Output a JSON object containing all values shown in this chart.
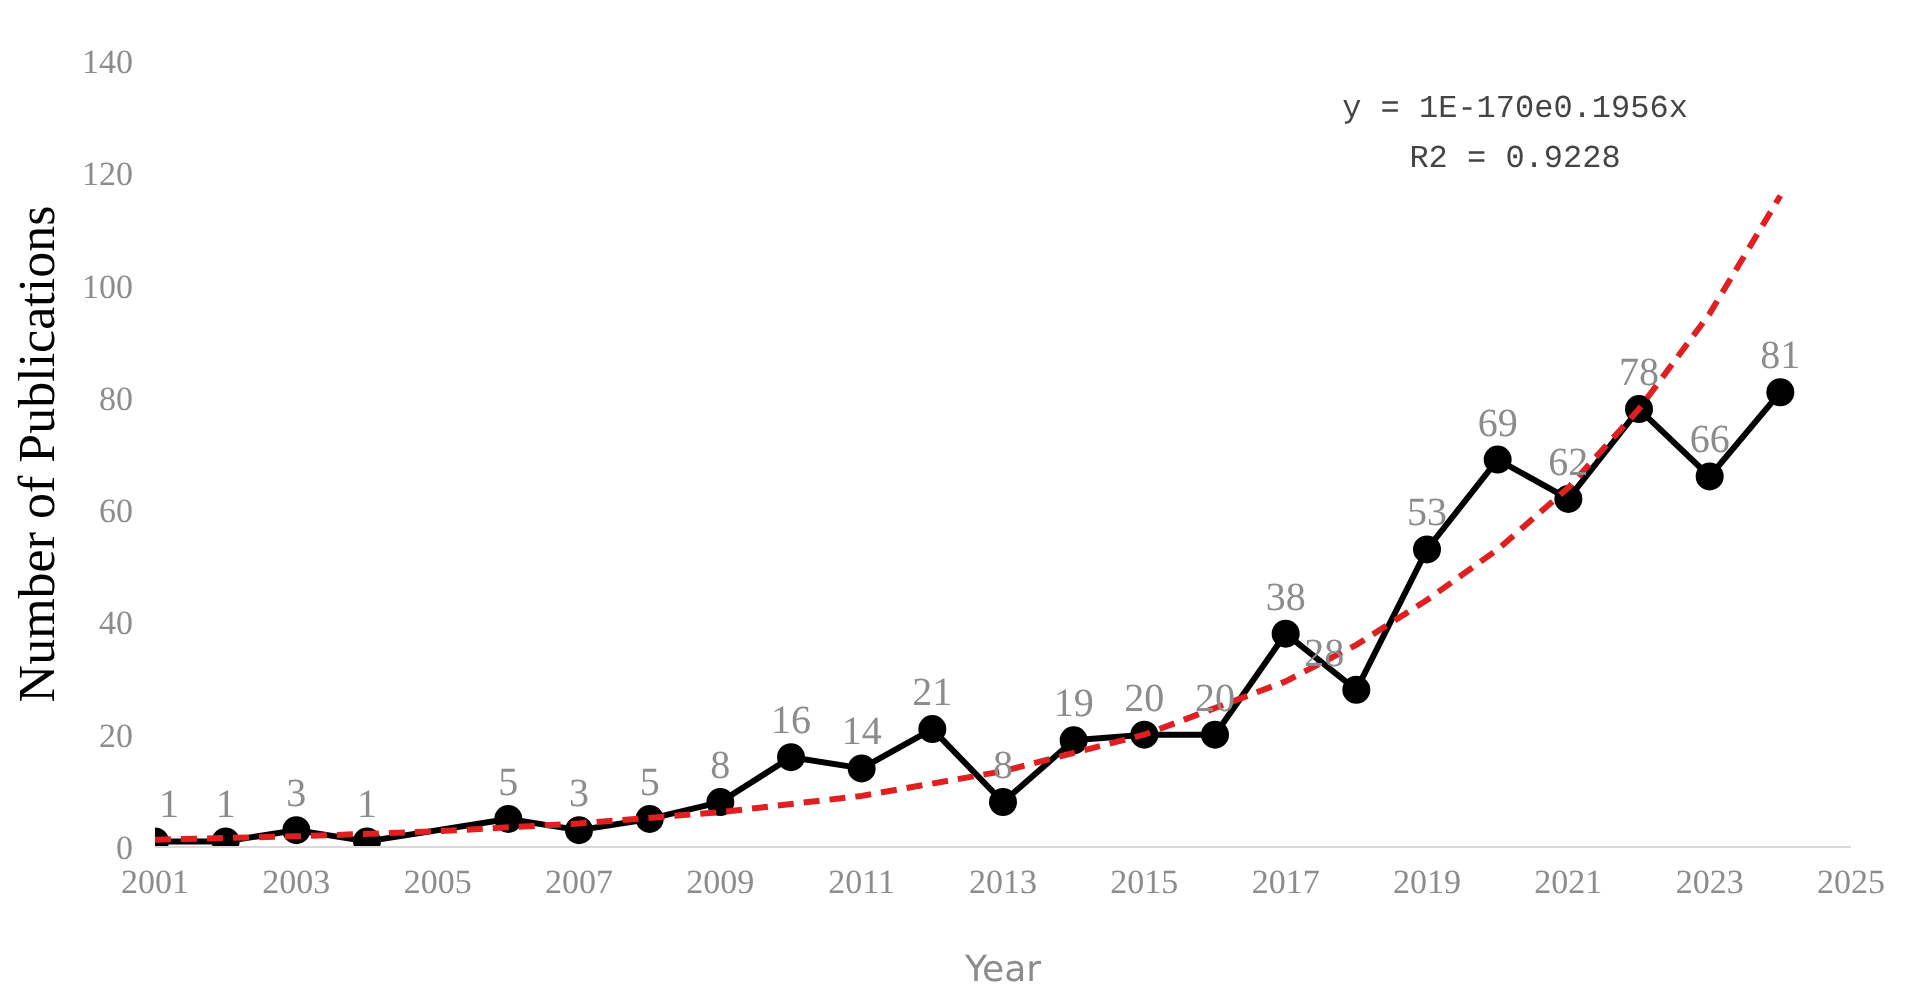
{
  "chart_data": {
    "type": "line",
    "xlabel": "Year",
    "ylabel": "Number of Publications",
    "xlim": [
      2001,
      2025
    ],
    "xticks": [
      2001,
      2003,
      2005,
      2007,
      2009,
      2011,
      2013,
      2015,
      2017,
      2019,
      2021,
      2023,
      2025
    ],
    "ylim": [
      0,
      140
    ],
    "yticks": [
      0,
      20,
      40,
      60,
      80,
      100,
      120,
      140
    ],
    "grid": false,
    "annotations": [
      "y = 1E-170e0.1956x",
      "R2 = 0.9228"
    ],
    "series": [
      {
        "color": "#000000",
        "marker": "circle",
        "line_style": "solid",
        "data_labels": true,
        "x": [
          2001,
          2002,
          2003,
          2004,
          2006,
          2007,
          2008,
          2009,
          2010,
          2011,
          2012,
          2013,
          2014,
          2015,
          2016,
          2017,
          2018,
          2019,
          2020,
          2021,
          2022,
          2023,
          2024
        ],
        "values": [
          1,
          1,
          3,
          1,
          5,
          3,
          5,
          8,
          16,
          14,
          21,
          8,
          19,
          20,
          20,
          38,
          28,
          53,
          69,
          62,
          78,
          66,
          81
        ]
      },
      {
        "color": "#e02020",
        "marker": "none",
        "line_style": "dashed",
        "type": "line",
        "x": [
          2001,
          2003,
          2005,
          2007,
          2009,
          2011,
          2013,
          2015,
          2017,
          2018,
          2019,
          2020,
          2021,
          2022,
          2023,
          2024
        ],
        "values": [
          1.3,
          1.9,
          2.8,
          4.2,
          6.2,
          9.1,
          13.5,
          20,
          29.5,
          36,
          44,
          53,
          64,
          78,
          95,
          116
        ]
      }
    ]
  }
}
